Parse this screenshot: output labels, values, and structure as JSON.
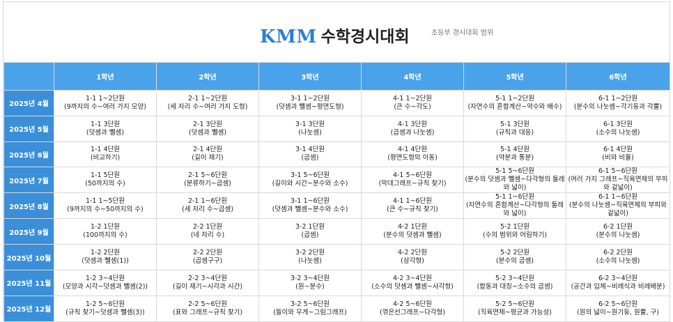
{
  "header": {
    "brand": "KMM",
    "title": "수학경시대회",
    "subtitle": "초등부 경시대회 범위"
  },
  "columns": [
    "1학년",
    "2학년",
    "3학년",
    "4학년",
    "5학년",
    "6학년"
  ],
  "rows": [
    {
      "month": "2025년 4월",
      "cells": [
        {
          "unit": "1-1 1~2단원",
          "topic": "(9까지의 수~여러 가지 모양)"
        },
        {
          "unit": "2-1 1~2단원",
          "topic": "(세 자리 수~여러 가지 도형)"
        },
        {
          "unit": "3-1 1~2단원",
          "topic": "(덧셈과 뺄셈~평면도형)"
        },
        {
          "unit": "4-1 1~2단원",
          "topic": "(큰 수~각도)"
        },
        {
          "unit": "5-1 1~2단원",
          "topic": "(자연수의 혼합계산~약수와 배수)"
        },
        {
          "unit": "6-1 1~2단원",
          "topic": "(분수의 나눗셈~각기둥과 각뿔)"
        }
      ]
    },
    {
      "month": "2025년 5월",
      "cells": [
        {
          "unit": "1-1 3단원",
          "topic": "(덧셈과 뺄셈)"
        },
        {
          "unit": "2-1 3단원",
          "topic": "(덧셈과 뺄셈)"
        },
        {
          "unit": "3-1 3단원",
          "topic": "(나눗셈)"
        },
        {
          "unit": "4-1 3단원",
          "topic": "(곱셈과 나눗셈)"
        },
        {
          "unit": "5-1 3단원",
          "topic": "(규칙과 대응)"
        },
        {
          "unit": "6-1 3단원",
          "topic": "(소수의 나눗셈)"
        }
      ]
    },
    {
      "month": "2025년 6월",
      "cells": [
        {
          "unit": "1-1 4단원",
          "topic": "(비교하기)"
        },
        {
          "unit": "2-1 4단원",
          "topic": "(길이 재기)"
        },
        {
          "unit": "3-1 4단원",
          "topic": "(곱셈)"
        },
        {
          "unit": "4-1 4단원",
          "topic": "(평면도형의 이동)"
        },
        {
          "unit": "5-1 4단원",
          "topic": "(약분과 통분)"
        },
        {
          "unit": "6-1 4단원",
          "topic": "(비와 비율)"
        }
      ]
    },
    {
      "month": "2025년 7월",
      "cells": [
        {
          "unit": "1-1 5단원",
          "topic": "(50까지의 수)"
        },
        {
          "unit": "2-1 5~6단원",
          "topic": "(분류하기~곱셈)"
        },
        {
          "unit": "3-1 5~6단원",
          "topic": "(길이와 시간~분수와 소수)"
        },
        {
          "unit": "4-1 5~6단원",
          "topic": "(막대그래프~규칙 찾기)"
        },
        {
          "unit": "5-1 5~6단원",
          "topic": "(분수의 덧셈과 뺄셈~다각형의 둘레와 넓이)"
        },
        {
          "unit": "6-1 5~6단원",
          "topic": "(여러 가지 그래프~직육면체의 부피와 겉넓이)"
        }
      ]
    },
    {
      "month": "2025년 8월",
      "cells": [
        {
          "unit": "1-1 1~5단원",
          "topic": "(9까지의 수~50까지의 수)"
        },
        {
          "unit": "2-1 1~6단원",
          "topic": "(세 자리 수~곱셈)"
        },
        {
          "unit": "3-1 1~6단원",
          "topic": "(덧셈과 뺄셈~분수와 소수)"
        },
        {
          "unit": "4-1 1~6단원",
          "topic": "(큰 수~규칙 찾기)"
        },
        {
          "unit": "5-1 1~6단원",
          "topic": "(자연수의 혼합계산~다각형의 둘레와 넓이)"
        },
        {
          "unit": "6-1 1~6단원",
          "topic": "(분수의 나눗셈~직육면체의 부피와 겉넓이)"
        }
      ]
    },
    {
      "month": "2025년 9월",
      "cells": [
        {
          "unit": "1-2 1단원",
          "topic": "(100까지의 수)"
        },
        {
          "unit": "2-2 1단원",
          "topic": "(네 자리 수)"
        },
        {
          "unit": "3-2 1단원",
          "topic": "(곱셈)"
        },
        {
          "unit": "4-2 1단원",
          "topic": "(분수의 덧셈과 뺄셈)"
        },
        {
          "unit": "5-2 1단원",
          "topic": "(수의 범위와 어림하기)"
        },
        {
          "unit": "6-2 1단원",
          "topic": "(분수의 나눗셈)"
        }
      ]
    },
    {
      "month": "2025년 10월",
      "cells": [
        {
          "unit": "1-2 2단원",
          "topic": "(덧셈과 뺄셈(1))"
        },
        {
          "unit": "2-2 2단원",
          "topic": "(곱셈구구)"
        },
        {
          "unit": "3-2 2단원",
          "topic": "(나눗셈)"
        },
        {
          "unit": "4-2 2단원",
          "topic": "(삼각형)"
        },
        {
          "unit": "5-2 2단원",
          "topic": "(분수의 곱셈)"
        },
        {
          "unit": "6-2 2단원",
          "topic": "(소수의 나눗셈)"
        }
      ]
    },
    {
      "month": "2025년 11월",
      "cells": [
        {
          "unit": "1-2 3~4단원",
          "topic": "(모양과 시각~덧셈과 뺄셈(2))"
        },
        {
          "unit": "2-2 3~4단원",
          "topic": "(길이 재기~시각과 시간)"
        },
        {
          "unit": "3-2 3~4단원",
          "topic": "(원~분수)"
        },
        {
          "unit": "4-2 3~4단원",
          "topic": "(소수의 덧셈과 뺄셈~사각형)"
        },
        {
          "unit": "5-2 3~4단원",
          "topic": "(합동과 대칭~소수의 곱셈)"
        },
        {
          "unit": "6-2 3~4단원",
          "topic": "(공간과 입체~비례식과 비례배분)"
        }
      ]
    },
    {
      "month": "2025년 12월",
      "cells": [
        {
          "unit": "1-2 5~6단원",
          "topic": "(규칙 찾기~덧셈과 뺄셈(3))"
        },
        {
          "unit": "2-2 5~6단원",
          "topic": "(표와 그래프~규칙 찾기)"
        },
        {
          "unit": "3-2 5~6단원",
          "topic": "(들이와 무게~그림그래프)"
        },
        {
          "unit": "4-2 5~6단원",
          "topic": "(꺾은선그래프~다각형)"
        },
        {
          "unit": "5-2 5~6단원",
          "topic": "(직육면체~평균과 가능성)"
        },
        {
          "unit": "6-2 5~6단원",
          "topic": "(원의 넓이~원기둥, 원뿔, 구)"
        }
      ]
    }
  ]
}
